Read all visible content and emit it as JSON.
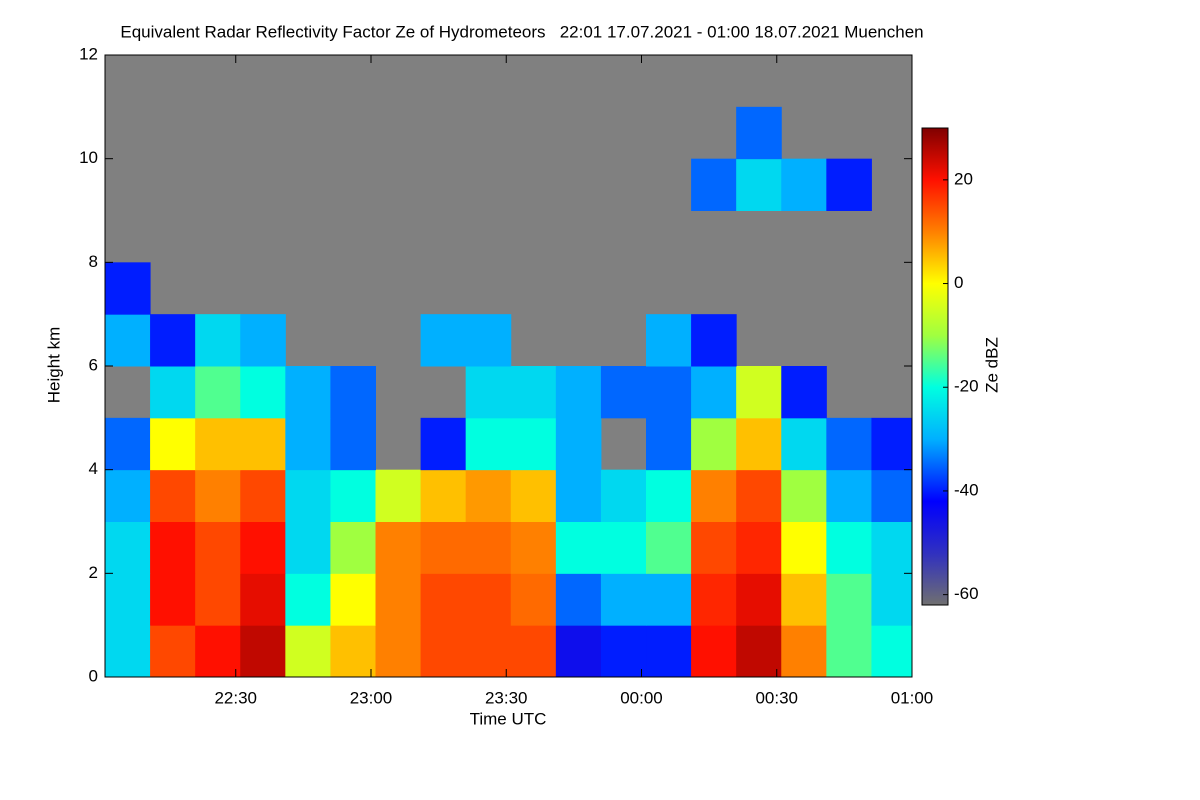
{
  "chart_data": {
    "type": "heatmap",
    "title": "Equivalent Radar Reflectivity Factor Ze of Hydrometeors   22:01 17.07.2021 - 01:00 18.07.2021 Muenchen",
    "x_label": "Time UTC",
    "y_label": "Height km",
    "colorbar_label": "Ze dBZ",
    "background": "#808080",
    "xlim": [
      1,
      180
    ],
    "xticks": [
      {
        "value": 30,
        "label": "22:30"
      },
      {
        "value": 60,
        "label": "23:00"
      },
      {
        "value": 90,
        "label": "23:30"
      },
      {
        "value": 120,
        "label": "00:00"
      },
      {
        "value": 150,
        "label": "00:30"
      },
      {
        "value": 180,
        "label": "01:00"
      }
    ],
    "ylim": [
      0,
      12
    ],
    "yticks": [
      0,
      2,
      4,
      6,
      8,
      10,
      12
    ],
    "zlim": [
      -62,
      30
    ],
    "zticks": [
      20,
      0,
      -20,
      -40,
      -60
    ],
    "colorscale": [
      {
        "value": -62,
        "color": "#707070"
      },
      {
        "value": -52,
        "color": "#3030c0"
      },
      {
        "value": -42,
        "color": "#0000ff"
      },
      {
        "value": -30,
        "color": "#00b0ff"
      },
      {
        "value": -20,
        "color": "#00ffe0"
      },
      {
        "value": -10,
        "color": "#a0ff40"
      },
      {
        "value": 0,
        "color": "#ffff00"
      },
      {
        "value": 10,
        "color": "#ff8000"
      },
      {
        "value": 20,
        "color": "#ff1000"
      },
      {
        "value": 30,
        "color": "#800000"
      }
    ],
    "x_bins": [
      1,
      11,
      21,
      31,
      41,
      51,
      61,
      71,
      81,
      91,
      101,
      111,
      121,
      131,
      141,
      151,
      161,
      171,
      180
    ],
    "y_bins": [
      0,
      1,
      2,
      3,
      4,
      5,
      6,
      7,
      8,
      9,
      10,
      11,
      12
    ],
    "z": [
      [
        -25,
        15,
        20,
        25,
        -5,
        5,
        10,
        15,
        15,
        15,
        -45,
        -40,
        -40,
        20,
        25,
        10,
        -15,
        -20
      ],
      [
        -25,
        20,
        15,
        22,
        -20,
        0,
        10,
        15,
        15,
        12,
        -35,
        -30,
        -30,
        18,
        22,
        5,
        -15,
        -25
      ],
      [
        -25,
        20,
        15,
        20,
        -25,
        -10,
        10,
        12,
        12,
        10,
        -20,
        -20,
        -15,
        15,
        18,
        0,
        -20,
        -25
      ],
      [
        -30,
        15,
        10,
        15,
        -25,
        -20,
        -5,
        5,
        8,
        5,
        -30,
        -25,
        -20,
        10,
        15,
        -10,
        -30,
        -35
      ],
      [
        -35,
        0,
        5,
        5,
        -30,
        -35,
        null,
        -40,
        -20,
        -20,
        -30,
        null,
        -35,
        -10,
        5,
        -25,
        -35,
        -40
      ],
      [
        null,
        -25,
        -15,
        -20,
        -30,
        -35,
        null,
        null,
        -25,
        -25,
        -30,
        -35,
        -35,
        -30,
        -5,
        -40,
        null,
        null
      ],
      [
        -30,
        -40,
        -25,
        -30,
        null,
        null,
        null,
        -30,
        -30,
        null,
        null,
        null,
        -30,
        -40,
        null,
        null,
        null,
        null
      ],
      [
        -40,
        null,
        null,
        null,
        null,
        null,
        null,
        null,
        null,
        null,
        null,
        null,
        null,
        null,
        null,
        null,
        null,
        null
      ],
      [
        null,
        null,
        null,
        null,
        null,
        null,
        null,
        null,
        null,
        null,
        null,
        null,
        null,
        null,
        null,
        null,
        null,
        null
      ],
      [
        null,
        null,
        null,
        null,
        null,
        null,
        null,
        null,
        null,
        null,
        null,
        null,
        null,
        -35,
        -25,
        -30,
        -40,
        null
      ],
      [
        null,
        null,
        null,
        null,
        null,
        null,
        null,
        null,
        null,
        null,
        null,
        null,
        null,
        null,
        -35,
        null,
        null,
        null
      ],
      [
        null,
        null,
        null,
        null,
        null,
        null,
        null,
        null,
        null,
        null,
        null,
        null,
        null,
        null,
        null,
        null,
        null,
        null
      ]
    ]
  }
}
